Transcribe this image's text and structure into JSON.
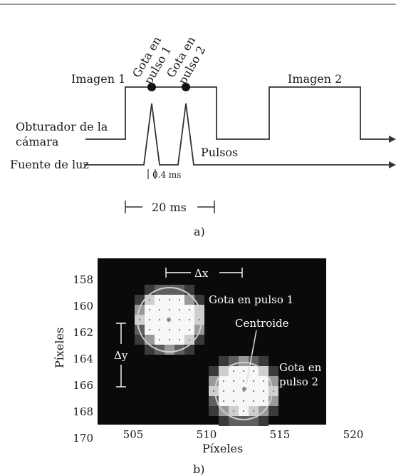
{
  "panel_a": {
    "signals": {
      "camera_shutter": "Obturador de la cámara",
      "light_source": "Fuente de luz"
    },
    "images": {
      "image1": "Imagen 1",
      "image2": "Imagen 2"
    },
    "drop_pulse1": "Gota en pulso 1",
    "drop_pulse2": "Gota en pulso 2",
    "pulses_label": "Pulsos",
    "pulse_width": "0.4 ms",
    "period": "20 ms",
    "caption": "a)"
  },
  "panel_b": {
    "xlabel": "Píxeles",
    "ylabel": "Píxeles",
    "x_ticks": [
      "505",
      "510",
      "515",
      "520"
    ],
    "y_ticks": [
      "158",
      "160",
      "162",
      "164",
      "166",
      "168",
      "170"
    ],
    "dx_label": "Δx",
    "dy_label": "Δy",
    "drop1_label": "Gota en pulso 1",
    "drop2_label": "Gota en pulso 2",
    "centroid_label": "Centroide",
    "caption": "b)"
  }
}
